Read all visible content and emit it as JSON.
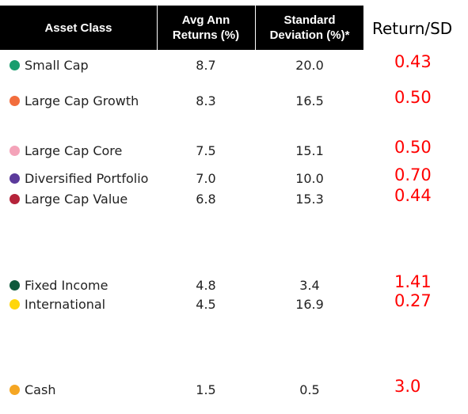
{
  "table": {
    "headers": {
      "asset_class": "Asset Class",
      "avg_returns": "Avg Ann\nReturns (%)",
      "std_dev": "Standard\nDeviation (%)*",
      "ratio": "Return/SD"
    },
    "rows": [
      {
        "name": "Small Cap",
        "returns": "8.7",
        "sd": "20.0",
        "ratio": "0.43",
        "color": "#1a9e6e"
      },
      {
        "name": "Large Cap Growth",
        "returns": "8.3",
        "sd": "16.5",
        "ratio": "0.50",
        "color": "#f26d3d"
      },
      {
        "name": "Large Cap Core",
        "returns": "7.5",
        "sd": "15.1",
        "ratio": "0.50",
        "color": "#f4a3b9"
      },
      {
        "name": "Diversified Portfolio",
        "returns": "7.0",
        "sd": "10.0",
        "ratio": "0.70",
        "color": "#5b3a9b"
      },
      {
        "name": "Large Cap Value",
        "returns": "6.8",
        "sd": "15.3",
        "ratio": "0.44",
        "color": "#b5233a"
      },
      {
        "name": "Fixed Income",
        "returns": "4.8",
        "sd": "3.4",
        "ratio": "1.41",
        "color": "#0f5a3c"
      },
      {
        "name": "International",
        "returns": "4.5",
        "sd": "16.9",
        "ratio": "0.27",
        "color": "#ffd60a"
      },
      {
        "name": "Cash",
        "returns": "1.5",
        "sd": "0.5",
        "ratio": "3.0",
        "color": "#f5a623"
      }
    ]
  },
  "colors": {
    "header_background": "#000000",
    "header_text": "#ffffff",
    "ratio_text": "#ff0000"
  }
}
